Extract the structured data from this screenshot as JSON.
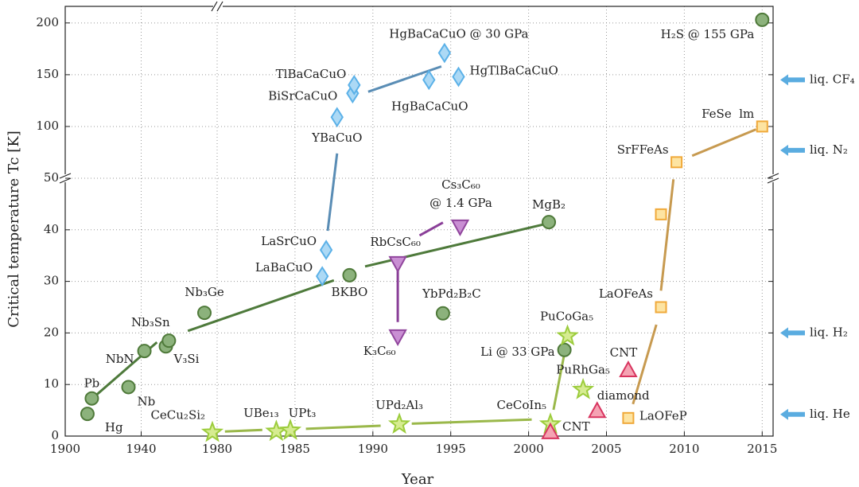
{
  "chart_data": {
    "type": "scatter",
    "xlabel": "Year",
    "ylabel": "Critical temperature Tc [K]",
    "xlim": [
      1900,
      2015.7
    ],
    "xbreak": 1980,
    "xticks": [
      1900,
      1940,
      1980,
      1985,
      1990,
      1995,
      2000,
      2005,
      2010,
      2015
    ],
    "ylim": [
      0,
      216
    ],
    "ybreak": 50,
    "yticks": [
      0,
      10,
      20,
      30,
      40,
      50,
      100,
      150,
      200
    ],
    "grid": true,
    "series": [
      {
        "marker": "circle",
        "color": "#8cb27c",
        "edge": "#4f7a3a",
        "x": [
          1911.7,
          1914,
          1933.3,
          1941.7,
          1953,
          1954.6,
          1973.3,
          1988.5,
          2001.3,
          1994.5,
          2002.3,
          2015
        ],
        "values": [
          4.3,
          7.3,
          9.5,
          16.5,
          17.4,
          18.5,
          23.9,
          31.2,
          41.5,
          23.8,
          16.7,
          203
        ],
        "labels": [
          "Hg",
          "Pb",
          "Nb",
          "NbN",
          "V₃Si",
          "Nb₃Sn",
          "Nb₃Ge",
          "BKBO",
          "MgB₂",
          "YbPd₂B₂C",
          "Li @ 33 GPa",
          "H₂S @ 155 GPa"
        ]
      },
      {
        "marker": "diamond",
        "color": "#acd9f5",
        "edge": "#5bb1e8",
        "x": [
          1986.75,
          1987,
          1987.7,
          1988.7,
          1988.8,
          1993.6,
          1994.6,
          1995.5
        ],
        "values": [
          31,
          36.1,
          109,
          132,
          140,
          145,
          171,
          148
        ],
        "labels": [
          "LaBaCuO",
          "LaSrCuO",
          "YBaCuO",
          "BiSrCaCuO",
          "TlBaCaCuO",
          "HgBaCaCuO",
          "HgBaCaCuO @ 30 GPa",
          "HgTlBaCaCuO"
        ]
      },
      {
        "marker": "triangle-down",
        "color": "#c98fd3",
        "edge": "#91469d",
        "x": [
          1991.6,
          1991.6,
          1995.6
        ],
        "values": [
          19.3,
          33.5,
          40.6
        ],
        "labels": [
          "K₃C₆₀",
          "RbCsC₆₀",
          [
            "Cs₃C₆₀",
            "@ 1.4 GPa"
          ]
        ]
      },
      {
        "marker": "star",
        "color": "#d6ec91",
        "edge": "#9ccc3c",
        "x": [
          1977.5,
          1983.8,
          1984.7,
          1991.7,
          2001.4,
          2002.5,
          2003.5
        ],
        "values": [
          0.7,
          0.9,
          1.1,
          2.3,
          2.3,
          19.4,
          9
        ],
        "labels": [
          "CeCu₂Si₂",
          "UBe₁₃",
          "UPt₃",
          "UPd₂Al₃",
          "CeCoIn₅",
          "PuCoGa₅",
          "PuRhGa₅"
        ]
      },
      {
        "marker": "triangle-up",
        "color": "#f5a3b3",
        "edge": "#d8345f",
        "x": [
          2001.4,
          2004.4,
          2006.4
        ],
        "values": [
          0.8,
          4.9,
          12.8
        ],
        "labels": [
          "CNT",
          "diamond",
          "CNT"
        ]
      },
      {
        "marker": "square",
        "color": "#fde4a2",
        "edge": "#f0a93a",
        "x": [
          2006.4,
          2008.5,
          2008.5,
          2009.5,
          2015
        ],
        "values": [
          3.5,
          25,
          43,
          65.5,
          100
        ],
        "labels": [
          "LaOFeP",
          "LaOFeAs",
          null,
          "SrFFeAs",
          "FeSe  lm"
        ]
      }
    ],
    "trends": [
      {
        "color": "#4e7a3b",
        "x": [
          1914.6,
          1948.3,
          null,
          1964.6,
          1987.5,
          null,
          1989.5,
          2000.9
        ],
        "y": [
          7.4,
          18.2,
          null,
          20.4,
          30.2,
          null,
          32.9,
          41.0
        ]
      },
      {
        "color": "#5a8db5",
        "x": [
          1987.1,
          1987.7,
          null,
          1989.7,
          1994.4
        ],
        "y": [
          39.8,
          74,
          null,
          133.5,
          158
        ]
      },
      {
        "color": "#8a3f98",
        "x": [
          1991.6,
          1991.6,
          null,
          1993,
          1994.5
        ],
        "y": [
          32.1,
          22.1,
          null,
          38.9,
          41.4
        ]
      },
      {
        "color": "#9ab84a",
        "x": [
          1980.5,
          1982.9,
          null,
          1985.7,
          1990.5,
          null,
          1992.5,
          2000.2,
          null,
          2001.6,
          2002.3
        ],
        "y": [
          0.9,
          1.2,
          null,
          1.4,
          2.0,
          null,
          2.4,
          3.2,
          null,
          5.1,
          16.0
        ]
      },
      {
        "color": "#c79a50",
        "x": [
          2006.7,
          2008.2,
          null,
          2008.5,
          2009.3,
          null,
          2010.5,
          2014.6
        ],
        "y": [
          6.2,
          21.6,
          null,
          28.2,
          49.8,
          null,
          71.7,
          97.2
        ]
      }
    ],
    "references": [
      {
        "label": "liq. CF₄",
        "value": 145
      },
      {
        "label": "liq. N₂",
        "value": 77
      },
      {
        "label": "liq. H₂",
        "value": 20
      },
      {
        "label": "liq. He",
        "value": 4.2
      }
    ]
  }
}
